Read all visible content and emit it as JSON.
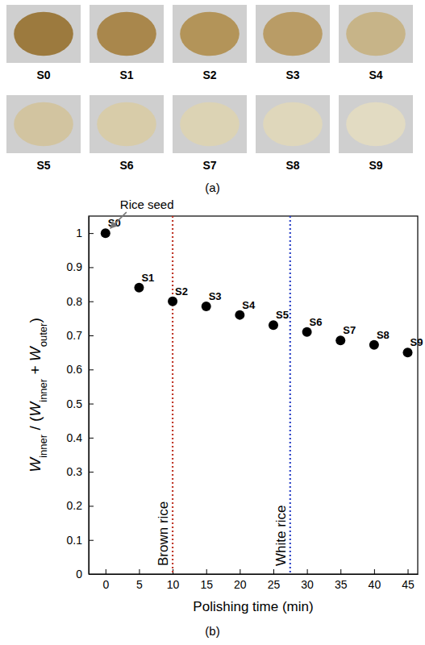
{
  "photos": {
    "caption": "(a)",
    "labels": [
      "S0",
      "S1",
      "S2",
      "S3",
      "S4",
      "S5",
      "S6",
      "S7",
      "S8",
      "S9"
    ],
    "colors": [
      "#9c7a3e",
      "#a9874c",
      "#b39459",
      "#b99c66",
      "#c7b488",
      "#d2c4a0",
      "#d8cca9",
      "#dcd3b4",
      "#dfd7bb",
      "#e2dbc2"
    ]
  },
  "chart_data": {
    "type": "scatter",
    "caption": "(b)",
    "x": [
      0,
      5,
      10,
      15,
      20,
      25,
      30,
      35,
      40,
      45
    ],
    "values": [
      1.0,
      0.84,
      0.8,
      0.785,
      0.76,
      0.73,
      0.71,
      0.685,
      0.672,
      0.65
    ],
    "point_labels": [
      "S0",
      "S1",
      "S2",
      "S3",
      "S4",
      "S5",
      "S6",
      "S7",
      "S8",
      "S9"
    ],
    "color": "#000000",
    "marker": "circle",
    "xlabel": "Polishing time (min)",
    "ylabel": [
      {
        "text": "W",
        "sub": false
      },
      {
        "text": "inner",
        "sub": true
      },
      {
        "text": " / (",
        "sub": false
      },
      {
        "text": "W",
        "sub": false
      },
      {
        "text": "inner",
        "sub": true
      },
      {
        "text": " + ",
        "sub": false
      },
      {
        "text": "W",
        "sub": false
      },
      {
        "text": "outer",
        "sub": true
      },
      {
        "text": ")",
        "sub": false
      }
    ],
    "annotations": [
      {
        "text": "Rice seed",
        "point": 0
      }
    ],
    "vlines": [
      {
        "x": 10,
        "label": "Brown rice",
        "color": "#c0392b"
      },
      {
        "x": 27.5,
        "label": "White rice",
        "color": "#2f46c8"
      }
    ],
    "xlim": [
      -2.5,
      46.5
    ],
    "xticks": [
      0,
      5,
      10,
      15,
      20,
      25,
      30,
      35,
      40,
      45
    ],
    "ylim": [
      0,
      1.05
    ],
    "yticks": [
      0,
      0.1,
      0.2,
      0.3,
      0.4,
      0.5,
      0.6,
      0.7,
      0.8,
      0.9,
      1
    ],
    "grid": false
  }
}
